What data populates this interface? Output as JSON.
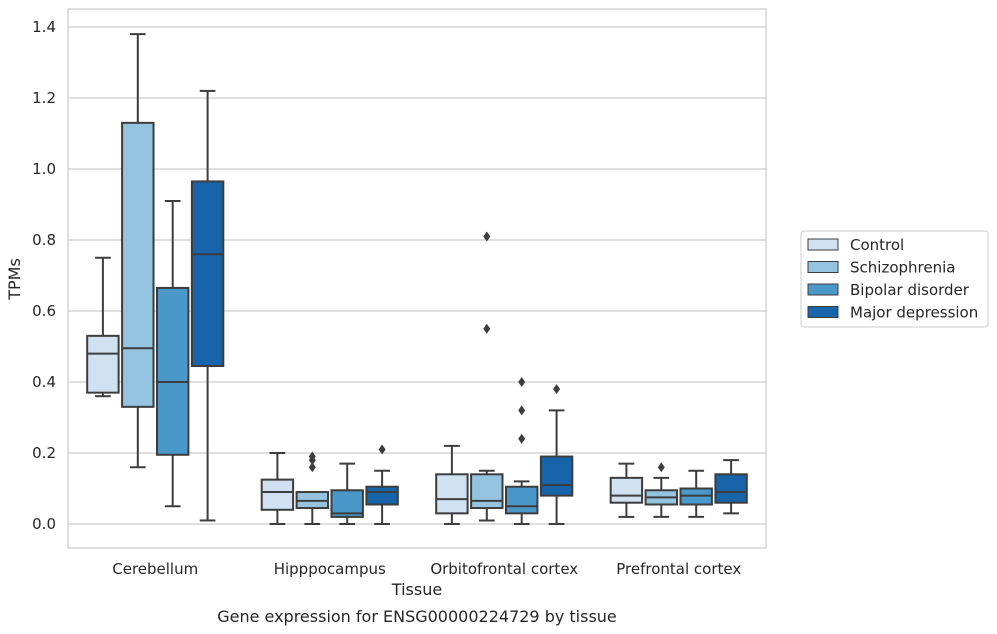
{
  "caption": "Gene expression for ENSG00000224729 by tissue",
  "chart_data": {
    "type": "box",
    "title": "",
    "xlabel": "Tissue",
    "ylabel": "TPMs",
    "ylim": [
      -0.065,
      1.45
    ],
    "yticks": [
      "0.0",
      "0.2",
      "0.4",
      "0.6",
      "0.8",
      "1.0",
      "1.2",
      "1.4"
    ],
    "grid": "horizontal",
    "legend_position": "right",
    "categories": [
      "Cerebellum",
      "Hipppocampus",
      "Orbitofrontal cortex",
      "Prefrontal cortex"
    ],
    "series": [
      {
        "name": "Control",
        "color": "#d0e1f2",
        "boxes": [
          {
            "whislo": 0.36,
            "q1": 0.37,
            "med": 0.48,
            "q3": 0.53,
            "whishi": 0.75,
            "fliers": []
          },
          {
            "whislo": 0.0,
            "q1": 0.04,
            "med": 0.09,
            "q3": 0.125,
            "whishi": 0.2,
            "fliers": []
          },
          {
            "whislo": 0.0,
            "q1": 0.03,
            "med": 0.07,
            "q3": 0.14,
            "whishi": 0.22,
            "fliers": []
          },
          {
            "whislo": 0.02,
            "q1": 0.06,
            "med": 0.08,
            "q3": 0.13,
            "whishi": 0.17,
            "fliers": []
          }
        ]
      },
      {
        "name": "Schizophrenia",
        "color": "#94c4df",
        "boxes": [
          {
            "whislo": 0.16,
            "q1": 0.33,
            "med": 0.495,
            "q3": 1.13,
            "whishi": 1.38,
            "fliers": []
          },
          {
            "whislo": 0.0,
            "q1": 0.045,
            "med": 0.065,
            "q3": 0.09,
            "whishi": 0.09,
            "fliers": [
              0.16,
              0.18,
              0.19
            ]
          },
          {
            "whislo": 0.01,
            "q1": 0.045,
            "med": 0.065,
            "q3": 0.14,
            "whishi": 0.15,
            "fliers": [
              0.55,
              0.81
            ]
          },
          {
            "whislo": 0.02,
            "q1": 0.055,
            "med": 0.075,
            "q3": 0.095,
            "whishi": 0.13,
            "fliers": [
              0.16
            ]
          }
        ]
      },
      {
        "name": "Bipolar disorder",
        "color": "#4a98c9",
        "boxes": [
          {
            "whislo": 0.05,
            "q1": 0.195,
            "med": 0.4,
            "q3": 0.665,
            "whishi": 0.91,
            "fliers": []
          },
          {
            "whislo": 0.0,
            "q1": 0.02,
            "med": 0.03,
            "q3": 0.095,
            "whishi": 0.17,
            "fliers": []
          },
          {
            "whislo": 0.0,
            "q1": 0.03,
            "med": 0.05,
            "q3": 0.105,
            "whishi": 0.12,
            "fliers": [
              0.24,
              0.32,
              0.4
            ]
          },
          {
            "whislo": 0.02,
            "q1": 0.055,
            "med": 0.08,
            "q3": 0.1,
            "whishi": 0.15,
            "fliers": []
          }
        ]
      },
      {
        "name": "Major depression",
        "color": "#1764ab",
        "boxes": [
          {
            "whislo": 0.01,
            "q1": 0.445,
            "med": 0.76,
            "q3": 0.965,
            "whishi": 1.22,
            "fliers": []
          },
          {
            "whislo": 0.0,
            "q1": 0.055,
            "med": 0.09,
            "q3": 0.105,
            "whishi": 0.15,
            "fliers": [
              0.21
            ]
          },
          {
            "whislo": 0.0,
            "q1": 0.08,
            "med": 0.11,
            "q3": 0.19,
            "whishi": 0.32,
            "fliers": [
              0.38
            ]
          },
          {
            "whislo": 0.03,
            "q1": 0.06,
            "med": 0.09,
            "q3": 0.14,
            "whishi": 0.18,
            "fliers": []
          }
        ]
      }
    ]
  }
}
